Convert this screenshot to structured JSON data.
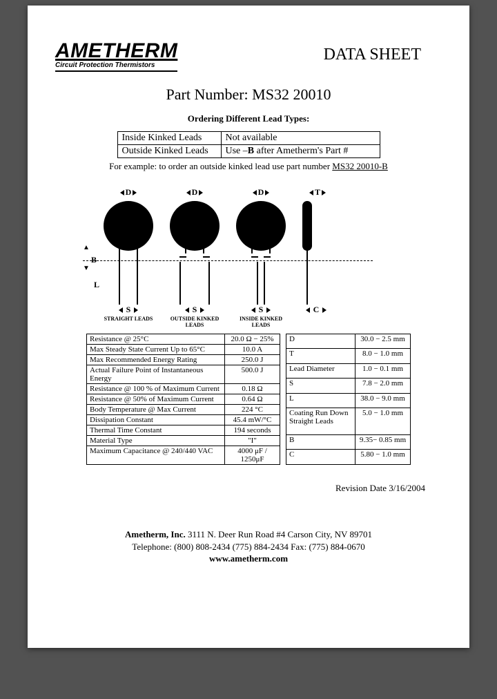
{
  "header": {
    "company": "AMETHERM",
    "tagline": "Circuit Protection Thermistors",
    "docTitle": "DATA SHEET"
  },
  "partNumber": "Part Number: MS32 20010",
  "orderingHeading": "Ordering Different Lead Types:",
  "leadTable": {
    "rows": [
      {
        "c1": "Inside Kinked Leads",
        "c2": "Not available"
      },
      {
        "c1": "Outside Kinked Leads",
        "c2": "Use –B after Ametherm's Part #"
      }
    ]
  },
  "example": {
    "prefix": "For example: to order an outside kinked lead use part number ",
    "pn": "MS32 20010-B"
  },
  "diagram": {
    "dims": {
      "D": "D",
      "T": "T",
      "B": "B",
      "L": "L",
      "S": "S",
      "C": "C"
    },
    "labels": {
      "straight": "STRAIGHT LEADS",
      "outside": "OUTSIDE KINKED LEADS",
      "inside": "INSIDE KINKED LEADS"
    },
    "colors": {
      "disc": "#000000",
      "bg": "#ffffff"
    }
  },
  "specs": {
    "left": [
      {
        "k": "Resistance @ 25°C",
        "v": "20.0 Ω − 25%"
      },
      {
        "k": "Max Steady State Current Up to 65°C",
        "v": "10.0 A"
      },
      {
        "k": "Max Recommended Energy Rating",
        "v": "250.0 J"
      },
      {
        "k": "Actual Failure Point of Instantaneous Energy",
        "v": "500.0 J"
      },
      {
        "k": "Resistance @ 100 % of Maximum Current",
        "v": "0.18 Ω"
      },
      {
        "k": "Resistance @ 50% of Maximum Current",
        "v": "0.64 Ω"
      },
      {
        "k": "Body Temperature @ Max Current",
        "v": "224 °C"
      },
      {
        "k": "Dissipation Constant",
        "v": "45.4 mW/°C"
      },
      {
        "k": "Thermal Time Constant",
        "v": "194 seconds"
      },
      {
        "k": "Material Type",
        "v": "\"I\""
      },
      {
        "k": "Maximum Capacitance @ 240/440 VAC",
        "v": "4000 μF / 1250μF"
      }
    ],
    "right": [
      {
        "k": "D",
        "v": "30.0 − 2.5 mm"
      },
      {
        "k": "T",
        "v": "8.0 − 1.0 mm"
      },
      {
        "k": "Lead Diameter",
        "v": "1.0 − 0.1 mm"
      },
      {
        "k": "S",
        "v": "7.8 − 2.0 mm"
      },
      {
        "k": "L",
        "v": "38.0 − 9.0 mm"
      },
      {
        "k": "Coating Run Down Straight Leads",
        "v": "5.0 − 1.0 mm"
      },
      {
        "k": "B",
        "v": "9.35− 0.85 mm"
      },
      {
        "k": "C",
        "v": "5.80 − 1.0 mm"
      }
    ]
  },
  "revision": "Revision Date 3/16/2004",
  "footer": {
    "line1a": "Ametherm, Inc.",
    "line1b": " 3111 N. Deer Run Road #4 Carson City, NV 89701",
    "line2": "Telephone: (800) 808-2434 (775) 884-2434 Fax: (775) 884-0670",
    "site": "www.ametherm.com"
  }
}
